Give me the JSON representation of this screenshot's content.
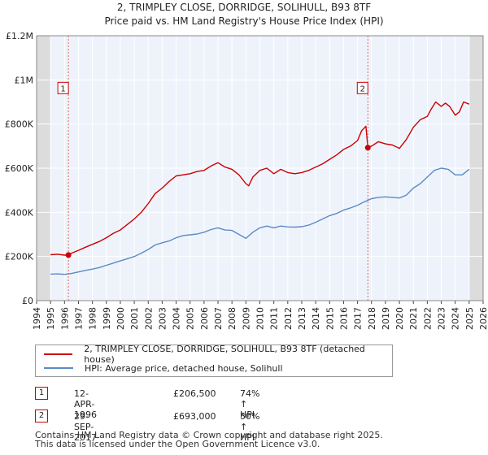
{
  "header": {
    "title": "2, TRIMPLEY CLOSE, DORRIDGE, SOLIHULL, B93 8TF",
    "subtitle": "Price paid vs. HM Land Registry's House Price Index (HPI)"
  },
  "chart_data": {
    "type": "line",
    "title": "2, TRIMPLEY CLOSE, DORRIDGE, SOLIHULL, B93 8TF",
    "subtitle": "Price paid vs. HM Land Registry's House Price Index (HPI)",
    "xlim": [
      1994,
      2026
    ],
    "ylim": [
      0,
      1200000
    ],
    "x_ticks": [
      "1994",
      "1995",
      "1996",
      "1997",
      "1998",
      "1999",
      "2000",
      "2001",
      "2002",
      "2003",
      "2004",
      "2005",
      "2006",
      "2007",
      "2008",
      "2009",
      "2010",
      "2011",
      "2012",
      "2013",
      "2014",
      "2015",
      "2016",
      "2017",
      "2018",
      "2019",
      "2020",
      "2021",
      "2022",
      "2023",
      "2024",
      "2025",
      "2026"
    ],
    "y_ticks": [
      {
        "value": 0,
        "label": "£0"
      },
      {
        "value": 200000,
        "label": "£200K"
      },
      {
        "value": 400000,
        "label": "£400K"
      },
      {
        "value": 600000,
        "label": "£600K"
      },
      {
        "value": 800000,
        "label": "£800K"
      },
      {
        "value": 1000000,
        "label": "£1M"
      },
      {
        "value": 1200000,
        "label": "£1.2M"
      }
    ],
    "grid": true,
    "shaded_ranges": [
      {
        "from": 1994,
        "to": 1995.0
      },
      {
        "from": 2025.0,
        "to": 2026
      }
    ],
    "series": [
      {
        "name": "2, TRIMPLEY CLOSE, DORRIDGE, SOLIHULL, B93 8TF (detached house)",
        "color": "#cc0000",
        "x": [
          1995.0,
          1995.5,
          1996.0,
          1996.28,
          1996.5,
          1997.0,
          1997.5,
          1998.0,
          1998.5,
          1999.0,
          1999.5,
          2000.0,
          2000.5,
          2001.0,
          2001.5,
          2002.0,
          2002.5,
          2003.0,
          2003.5,
          2004.0,
          2004.5,
          2005.0,
          2005.5,
          2006.0,
          2006.5,
          2007.0,
          2007.5,
          2008.0,
          2008.5,
          2009.0,
          2009.2,
          2009.5,
          2010.0,
          2010.5,
          2011.0,
          2011.5,
          2012.0,
          2012.5,
          2013.0,
          2013.5,
          2014.0,
          2014.5,
          2015.0,
          2015.5,
          2016.0,
          2016.5,
          2017.0,
          2017.3,
          2017.6,
          2017.74,
          2018.0,
          2018.5,
          2019.0,
          2019.5,
          2020.0,
          2020.5,
          2021.0,
          2021.5,
          2022.0,
          2022.3,
          2022.6,
          2023.0,
          2023.3,
          2023.6,
          2024.0,
          2024.3,
          2024.6,
          2025.0
        ],
        "values": [
          208000,
          210000,
          206000,
          206500,
          215000,
          228000,
          242000,
          255000,
          268000,
          285000,
          305000,
          320000,
          345000,
          370000,
          400000,
          440000,
          485000,
          510000,
          540000,
          565000,
          570000,
          575000,
          585000,
          590000,
          610000,
          625000,
          605000,
          595000,
          570000,
          530000,
          520000,
          560000,
          590000,
          600000,
          575000,
          595000,
          580000,
          575000,
          580000,
          590000,
          605000,
          620000,
          640000,
          660000,
          685000,
          700000,
          725000,
          770000,
          790000,
          693000,
          700000,
          720000,
          710000,
          705000,
          690000,
          730000,
          785000,
          820000,
          835000,
          870000,
          900000,
          880000,
          895000,
          880000,
          840000,
          855000,
          900000,
          890000
        ]
      },
      {
        "name": "HPI: Average price, detached house, Solihull",
        "color": "#5b8bc5",
        "x": [
          1995.0,
          1995.5,
          1996.0,
          1996.5,
          1997.0,
          1997.5,
          1998.0,
          1998.5,
          1999.0,
          1999.5,
          2000.0,
          2000.5,
          2001.0,
          2001.5,
          2002.0,
          2002.5,
          2003.0,
          2003.5,
          2004.0,
          2004.5,
          2005.0,
          2005.5,
          2006.0,
          2006.5,
          2007.0,
          2007.5,
          2008.0,
          2008.5,
          2009.0,
          2009.5,
          2010.0,
          2010.5,
          2011.0,
          2011.5,
          2012.0,
          2012.5,
          2013.0,
          2013.5,
          2014.0,
          2014.5,
          2015.0,
          2015.5,
          2016.0,
          2016.5,
          2017.0,
          2017.5,
          2018.0,
          2018.5,
          2019.0,
          2019.5,
          2020.0,
          2020.5,
          2021.0,
          2021.5,
          2022.0,
          2022.5,
          2023.0,
          2023.5,
          2024.0,
          2024.5,
          2025.0
        ],
        "values": [
          120000,
          121000,
          119000,
          123000,
          130000,
          137000,
          143000,
          150000,
          160000,
          170000,
          180000,
          190000,
          200000,
          215000,
          232000,
          252000,
          262000,
          270000,
          285000,
          295000,
          298000,
          302000,
          310000,
          322000,
          330000,
          320000,
          318000,
          300000,
          282000,
          310000,
          330000,
          338000,
          330000,
          338000,
          334000,
          333000,
          335000,
          342000,
          355000,
          370000,
          385000,
          395000,
          410000,
          420000,
          432000,
          448000,
          462000,
          468000,
          470000,
          468000,
          465000,
          478000,
          510000,
          530000,
          560000,
          590000,
          600000,
          595000,
          570000,
          570000,
          595000
        ]
      }
    ],
    "markers": [
      {
        "label": "1",
        "x": 1996.28,
        "y": 206500
      },
      {
        "label": "2",
        "x": 2017.74,
        "y": 693000
      }
    ]
  },
  "legend": {
    "property_label": "2, TRIMPLEY CLOSE, DORRIDGE, SOLIHULL, B93 8TF (detached house)",
    "hpi_label": "HPI: Average price, detached house, Solihull"
  },
  "sales": [
    {
      "num": "1",
      "date": "12-APR-1996",
      "price": "£206,500",
      "hpi": "74% ↑ HPI"
    },
    {
      "num": "2",
      "date": "29-SEP-2017",
      "price": "£693,000",
      "hpi": "50% ↑ HPI"
    }
  ],
  "footer": {
    "line1": "Contains HM Land Registry data © Crown copyright and database right 2025.",
    "line2": "This data is licensed under the Open Government Licence v3.0."
  },
  "colors": {
    "property": "#cc0000",
    "hpi": "#5b8bc5",
    "plot_bg": "#eef3fb",
    "shade": "#dcdcdc"
  }
}
